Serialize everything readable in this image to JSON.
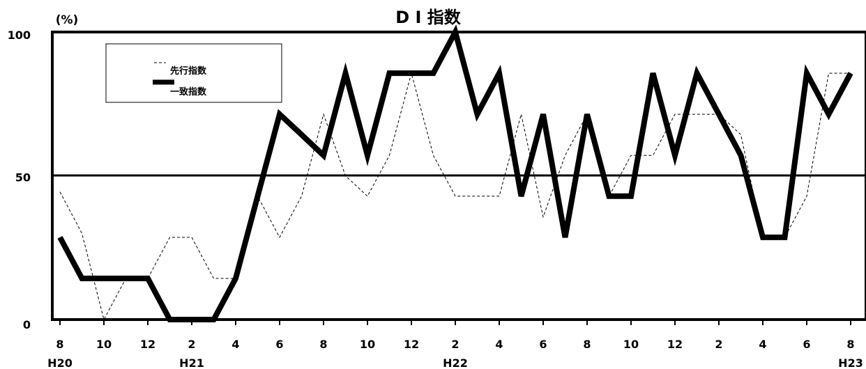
{
  "chart_data": {
    "type": "line",
    "title": "D I 指数",
    "ylabel": "(%)",
    "ylim": [
      0,
      100
    ],
    "yticks": [
      "0",
      "50",
      "100"
    ],
    "reference_line": 50,
    "grid": false,
    "legend_position": "top-left",
    "x": [
      "8",
      "9",
      "10",
      "11",
      "12",
      "1",
      "2",
      "3",
      "4",
      "5",
      "6",
      "7",
      "8",
      "9",
      "10",
      "11",
      "12",
      "1",
      "2",
      "3",
      "4",
      "5",
      "6",
      "7",
      "8",
      "9",
      "10",
      "11",
      "12",
      "1",
      "2",
      "3",
      "4",
      "5",
      "6",
      "7",
      "8"
    ],
    "x_tick_labels": [
      "8",
      "10",
      "12",
      "2",
      "4",
      "6",
      "8",
      "10",
      "12",
      "2",
      "4",
      "6",
      "8",
      "10",
      "12",
      "2",
      "4",
      "6",
      "8"
    ],
    "era_labels": [
      {
        "label": "H20",
        "index": 0
      },
      {
        "label": "H21",
        "index": 6
      },
      {
        "label": "H22",
        "index": 18
      },
      {
        "label": "H23",
        "index": 36
      }
    ],
    "series": [
      {
        "name": "先行指数",
        "style": "dashed-thin",
        "color": "#000000",
        "values": [
          44.4,
          30,
          0,
          14.3,
          14.3,
          28.6,
          28.6,
          14.3,
          14.3,
          42.9,
          28.6,
          42.9,
          71.4,
          50,
          42.9,
          57.1,
          85.7,
          57.1,
          42.9,
          42.9,
          42.9,
          71.4,
          35.7,
          57.1,
          71.4,
          42.9,
          57.1,
          57.1,
          71.4,
          71.4,
          71.4,
          64.3,
          28.6,
          28.6,
          42.9,
          85.7,
          85.7
        ]
      },
      {
        "name": "一致指数",
        "style": "solid-thick",
        "color": "#000000",
        "values": [
          28.6,
          14.3,
          14.3,
          14.3,
          14.3,
          0,
          0,
          0,
          14.3,
          42.9,
          71.4,
          64.3,
          57.1,
          85.7,
          57.1,
          85.7,
          85.7,
          85.7,
          100,
          71.4,
          85.7,
          42.9,
          71.4,
          28.6,
          71.4,
          42.9,
          42.9,
          85.7,
          57.1,
          85.7,
          71.4,
          57.1,
          28.6,
          28.6,
          85.7,
          71.4,
          85.7
        ]
      }
    ]
  }
}
